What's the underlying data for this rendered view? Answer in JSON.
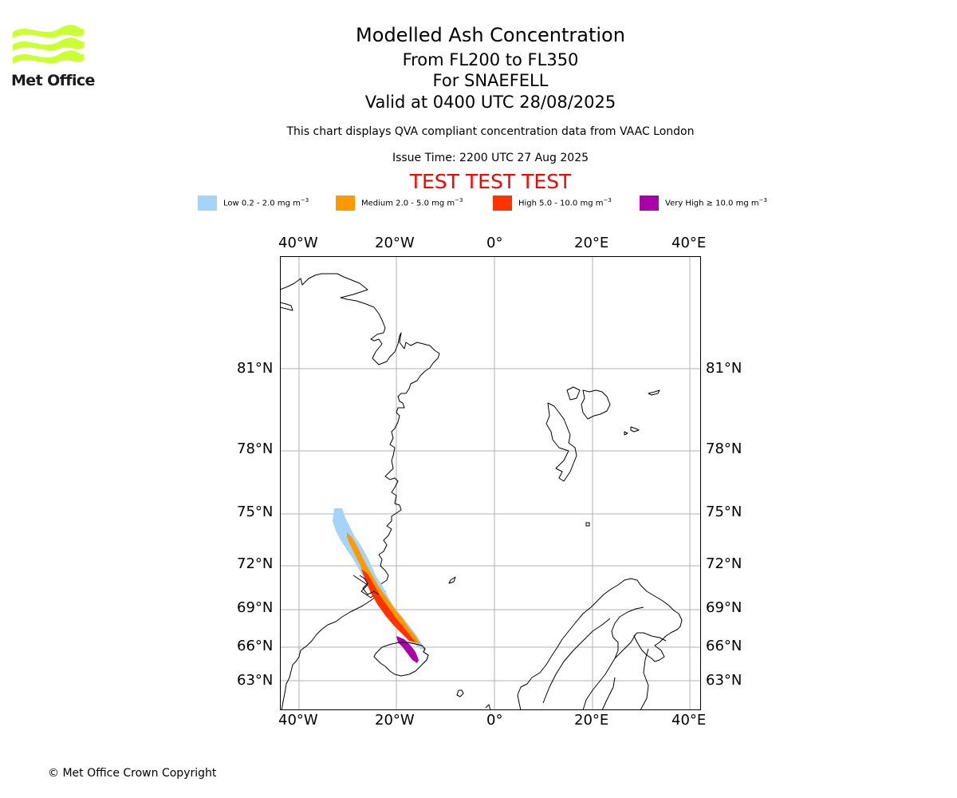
{
  "logo": {
    "text": "Met Office",
    "wave_color": "#ccff33"
  },
  "title": {
    "line1": "Modelled Ash Concentration",
    "line2": "From FL200 to FL350",
    "line3": "For SNAEFELL",
    "line4": "Valid at 0400 UTC 28/08/2025"
  },
  "subtitle": "This chart displays QVA compliant concentration data from VAAC London",
  "issue_time": "Issue Time: 2200 UTC 27 Aug 2025",
  "test_banner": "TEST TEST TEST",
  "legend": [
    {
      "label": "Low 0.2 - 2.0 mg m",
      "color": "#a4d4fa"
    },
    {
      "label": "Medium 2.0 - 5.0 mg m",
      "color": "#ff9900"
    },
    {
      "label": "High 5.0 - 10.0 mg m",
      "color": "#ff3300"
    },
    {
      "label": "Very High ≥ 10.0 mg m",
      "color": "#aa00aa"
    }
  ],
  "legend_unit_exponent": "−3",
  "map": {
    "lon_ticks": [
      "40°W",
      "20°W",
      "0°",
      "20°E",
      "40°E"
    ],
    "lat_ticks": [
      "81°N",
      "78°N",
      "75°N",
      "72°N",
      "69°N",
      "66°N",
      "63°N"
    ],
    "gridline_color": "#b0b0b0",
    "coastline_color": "#000000"
  },
  "copyright": "© Met Office Crown Copyright"
}
